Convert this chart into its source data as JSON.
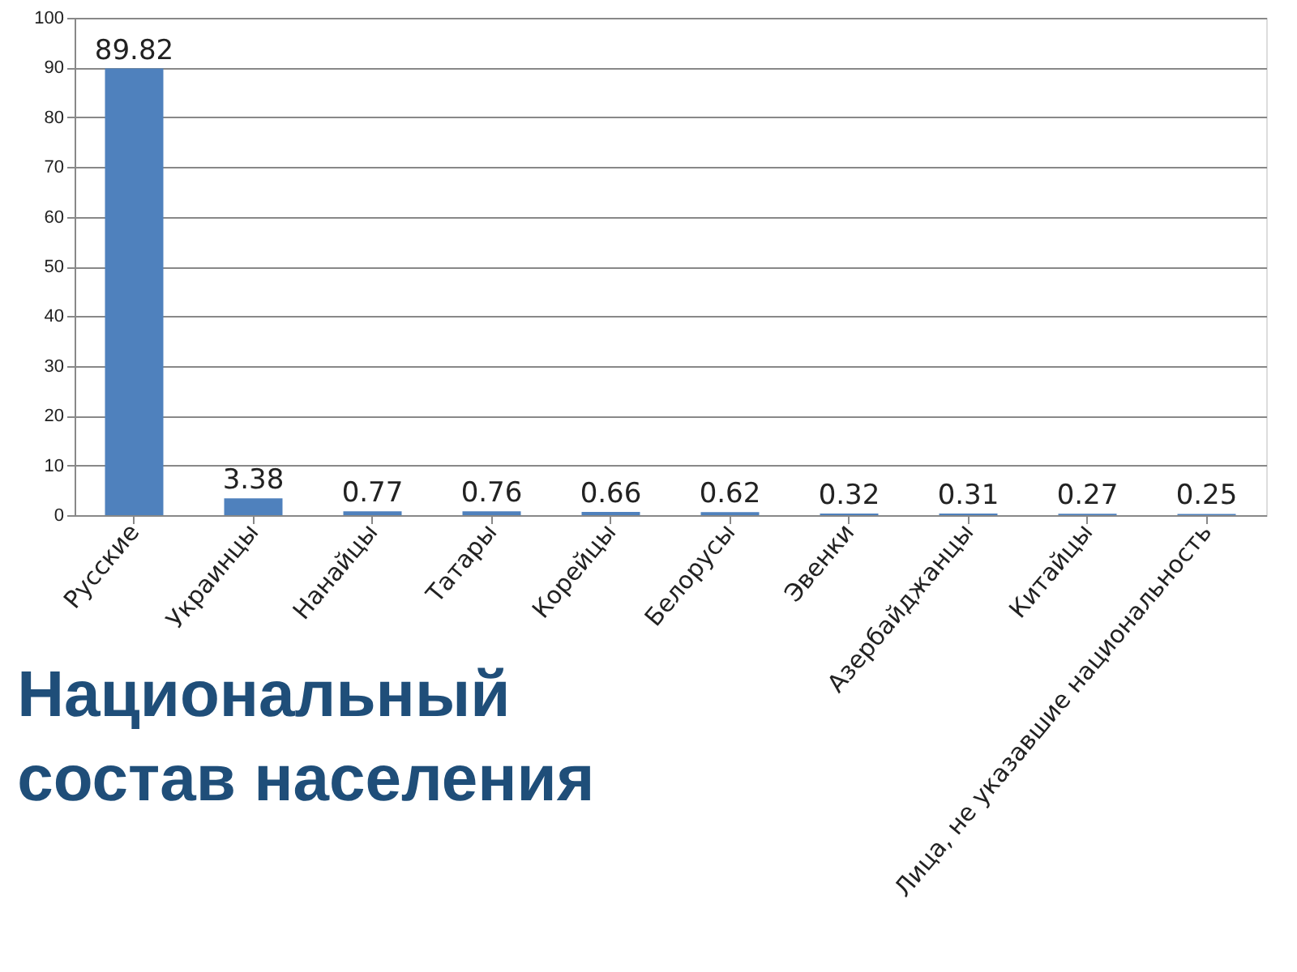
{
  "chart_data": {
    "type": "bar",
    "title": [
      "Национальный",
      "состав населения"
    ],
    "categories": [
      "Русские",
      "Украинцы",
      "Нанайцы",
      "Татары",
      "Корейцы",
      "Белорусы",
      "Эвенки",
      "Азербайджанцы",
      "Китайцы",
      "Лица, не указавшие национальность"
    ],
    "values": [
      89.82,
      3.38,
      0.77,
      0.76,
      0.66,
      0.62,
      0.32,
      0.31,
      0.27,
      0.25
    ],
    "color": "#4f81bd",
    "ylim": [
      0,
      100
    ],
    "yticks": [
      0,
      10,
      20,
      30,
      40,
      50,
      60,
      70,
      80,
      90,
      100
    ],
    "grid": "y",
    "data_labels": true
  }
}
